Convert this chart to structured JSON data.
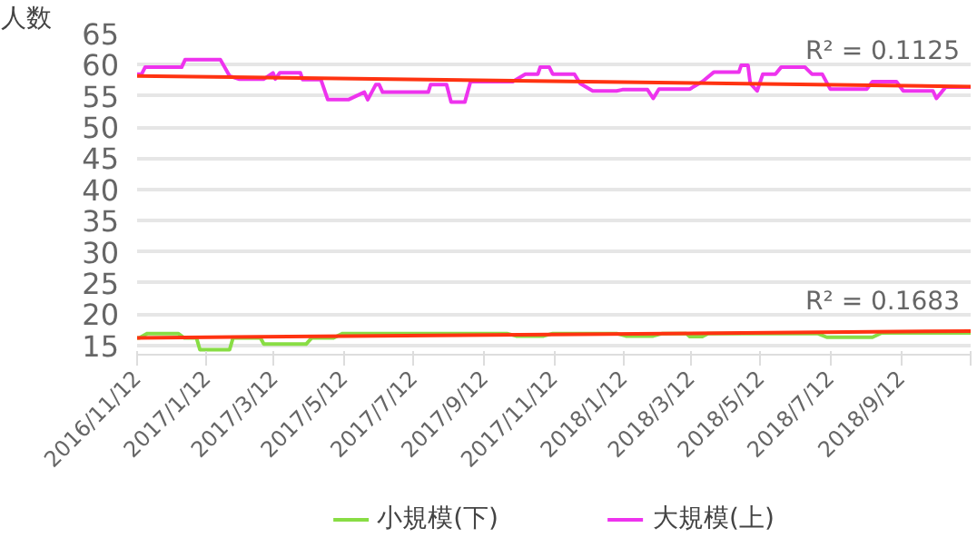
{
  "chart_data": {
    "type": "line",
    "ylabel": "人数",
    "ylim": [
      13.5,
      65
    ],
    "yticks": [
      15,
      20,
      25,
      30,
      35,
      40,
      45,
      50,
      55,
      60,
      65
    ],
    "xlim": [
      "2016-11-12",
      "2018-11-12"
    ],
    "xticks": [
      {
        "value": "2016-11-12",
        "label": "2016/11/12"
      },
      {
        "value": "2017-01-12",
        "label": "2017/1/12"
      },
      {
        "value": "2017-03-12",
        "label": "2017/3/12"
      },
      {
        "value": "2017-05-12",
        "label": "2017/5/12"
      },
      {
        "value": "2017-07-12",
        "label": "2017/7/12"
      },
      {
        "value": "2017-09-12",
        "label": "2017/9/12"
      },
      {
        "value": "2017-11-12",
        "label": "2017/11/12"
      },
      {
        "value": "2018-01-12",
        "label": "2018/1/12"
      },
      {
        "value": "2018-03-12",
        "label": "2018/3/12"
      },
      {
        "value": "2018-05-12",
        "label": "2018/5/12"
      },
      {
        "value": "2018-07-12",
        "label": "2018/7/12"
      },
      {
        "value": "2018-09-12",
        "label": "2018/9/12"
      },
      {
        "value": "2018-11-12",
        "label": null
      }
    ],
    "grid": "y",
    "legend": "bottom",
    "marker": "none",
    "line_style": "solid",
    "series": [
      {
        "name": "小規模(下)",
        "color": "#88dd44",
        "x": [
          "2016-11-12",
          "2016-11-14",
          "2016-11-21",
          "2016-12-18",
          "2016-12-23",
          "2017-01-03",
          "2017-01-06",
          "2017-02-01",
          "2017-02-04",
          "2017-02-28",
          "2017-03-03",
          "2017-04-09",
          "2017-04-14",
          "2017-05-03",
          "2017-05-11",
          "2017-10-02",
          "2017-10-10",
          "2017-11-03",
          "2017-11-11",
          "2018-01-06",
          "2018-01-14",
          "2018-02-07",
          "2018-02-15",
          "2018-03-08",
          "2018-03-11",
          "2018-03-22",
          "2018-03-27",
          "2018-07-01",
          "2018-07-09",
          "2018-08-18",
          "2018-08-26",
          "2018-11-12"
        ],
        "values": [
          16.2,
          16.2,
          16.9,
          16.9,
          16.2,
          16.2,
          14.3,
          14.3,
          16.2,
          16.2,
          15.2,
          15.2,
          16.2,
          16.2,
          16.9,
          16.9,
          16.5,
          16.5,
          16.9,
          16.9,
          16.5,
          16.5,
          16.9,
          16.9,
          16.4,
          16.4,
          16.9,
          16.9,
          16.3,
          16.3,
          17.0,
          17.0
        ]
      },
      {
        "name": "大規模(上)",
        "color": "#ee33ee",
        "x": [
          "2016-11-12",
          "2016-11-16",
          "2016-11-19",
          "2016-12-21",
          "2016-12-24",
          "2017-01-24",
          "2017-02-01",
          "2017-02-09",
          "2017-03-03",
          "2017-03-11",
          "2017-03-13",
          "2017-03-17",
          "2017-04-04",
          "2017-04-06",
          "2017-04-22",
          "2017-04-28",
          "2017-05-16",
          "2017-05-30",
          "2017-06-02",
          "2017-06-09",
          "2017-06-12",
          "2017-06-15",
          "2017-07-25",
          "2017-07-27",
          "2017-08-10",
          "2017-08-14",
          "2017-08-26",
          "2017-08-31",
          "2017-10-07",
          "2017-10-18",
          "2017-10-29",
          "2017-10-31",
          "2017-11-08",
          "2017-11-11",
          "2017-11-30",
          "2017-12-05",
          "2017-12-16",
          "2018-01-06",
          "2018-01-11",
          "2018-02-02",
          "2018-02-07",
          "2018-02-12",
          "2018-03-11",
          "2018-03-22",
          "2018-04-01",
          "2018-04-23",
          "2018-04-25",
          "2018-05-01",
          "2018-05-03",
          "2018-05-09",
          "2018-05-14",
          "2018-05-25",
          "2018-05-30",
          "2018-06-20",
          "2018-06-26",
          "2018-07-05",
          "2018-07-12",
          "2018-08-13",
          "2018-08-18",
          "2018-09-08",
          "2018-09-14",
          "2018-10-10",
          "2018-10-13",
          "2018-10-21",
          "2018-11-12"
        ],
        "values": [
          58.5,
          58.5,
          59.6,
          59.6,
          60.8,
          60.8,
          58.2,
          57.7,
          57.7,
          58.7,
          57.7,
          58.7,
          58.7,
          57.6,
          57.6,
          54.4,
          54.4,
          55.6,
          54.4,
          56.8,
          56.8,
          55.6,
          55.6,
          56.8,
          56.8,
          54.0,
          54.0,
          57.3,
          57.3,
          58.5,
          58.5,
          59.6,
          59.6,
          58.5,
          58.5,
          57.0,
          55.8,
          55.8,
          56.0,
          56.0,
          54.6,
          56.1,
          56.1,
          57.3,
          58.8,
          58.8,
          59.9,
          59.9,
          57.0,
          55.8,
          58.5,
          58.5,
          59.6,
          59.6,
          58.5,
          58.5,
          56.1,
          56.1,
          57.3,
          57.3,
          55.8,
          55.8,
          54.6,
          56.4,
          56.4
        ]
      },
      {
        "type": "line",
        "color": "#ff3311",
        "x": [
          "2016-11-12",
          "2018-11-12"
        ],
        "values": [
          16.2,
          17.3
        ]
      },
      {
        "type": "line",
        "color": "#ff3311",
        "x": [
          "2016-11-12",
          "2018-11-12"
        ],
        "values": [
          58.2,
          56.5
        ]
      }
    ],
    "annotations": [
      "R² = 0.1125",
      "R² = 0.1683"
    ]
  }
}
